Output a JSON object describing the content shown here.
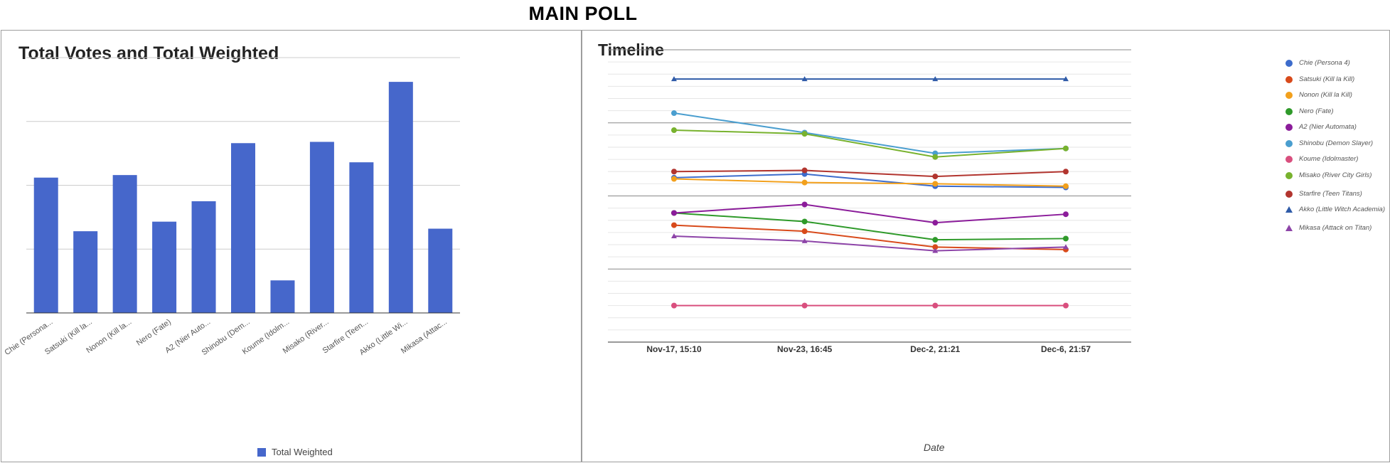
{
  "page_title": "MAIN POLL",
  "chart_data": [
    {
      "type": "bar",
      "title": "Total Votes and Total Weighted",
      "categories": [
        "Chie (Persona...",
        "Satsuki (Kill la...",
        "Nonon (Kill la...",
        "Nero (Fate)",
        "A2 (Nier Auto...",
        "Shinobu (Dem...",
        "Koume (Idolm...",
        "Misako (River...",
        "Starfire (Teen...",
        "Akko (Little Wi...",
        "Mikasa (Attac..."
      ],
      "series": [
        {
          "name": "Total Weighted",
          "color": "#4667cb",
          "values": [
            212,
            128,
            216,
            143,
            175,
            266,
            51,
            268,
            236,
            362,
            132
          ]
        }
      ],
      "ylim": [
        0,
        400
      ],
      "grid": true,
      "legend": "bottom"
    },
    {
      "type": "line",
      "title": "Timeline",
      "xlabel": "Date",
      "x": [
        "Nov-17, 15:10",
        "Nov-23, 16:45",
        "Dec-2, 21:21",
        "Dec-6, 21:57"
      ],
      "ylim": [
        0,
        24
      ],
      "grid": true,
      "legend": "right",
      "series": [
        {
          "name": "Chie (Persona 4)",
          "color": "#3d6ccc",
          "marker": "circle",
          "values": [
            13.5,
            13.8,
            12.8,
            12.7
          ]
        },
        {
          "name": "Satsuki (Kill la Kill)",
          "color": "#d84a1b",
          "marker": "circle",
          "values": [
            9.6,
            9.1,
            7.8,
            7.6
          ]
        },
        {
          "name": "Nonon (Kill la Kill)",
          "color": "#f2a01c",
          "marker": "circle",
          "values": [
            13.4,
            13.1,
            13.0,
            12.8
          ]
        },
        {
          "name": "Nero (Fate)",
          "color": "#2f9a2a",
          "marker": "circle",
          "values": [
            10.6,
            9.9,
            8.4,
            8.5
          ]
        },
        {
          "name": "A2 (Nier Automata)",
          "color": "#8b1c9a",
          "marker": "circle",
          "values": [
            10.6,
            11.3,
            9.8,
            10.5
          ]
        },
        {
          "name": "Shinobu (Demon Slayer)",
          "color": "#4a9ecf",
          "marker": "circle",
          "values": [
            18.8,
            17.2,
            15.5,
            15.9
          ]
        },
        {
          "name": "Koume (Idolmaster)",
          "color": "#d94f7e",
          "marker": "circle",
          "values": [
            3.0,
            3.0,
            3.0,
            3.0
          ]
        },
        {
          "name": "Misako (River City Girls)",
          "color": "#78b22e",
          "marker": "circle",
          "values": [
            17.4,
            17.1,
            15.2,
            15.9
          ]
        },
        {
          "name": "Starfire (Teen Titans)",
          "color": "#b2352f",
          "marker": "circle",
          "values": [
            14.0,
            14.1,
            13.6,
            14.0
          ]
        },
        {
          "name": "Akko (Little Witch Academia)",
          "color": "#2f5ba8",
          "marker": "triangle",
          "values": [
            21.6,
            21.6,
            21.6,
            21.6
          ]
        },
        {
          "name": "Mikasa (Attack on Titan)",
          "color": "#8d44a8",
          "marker": "triangle",
          "values": [
            8.7,
            8.3,
            7.5,
            7.8
          ]
        }
      ]
    }
  ]
}
